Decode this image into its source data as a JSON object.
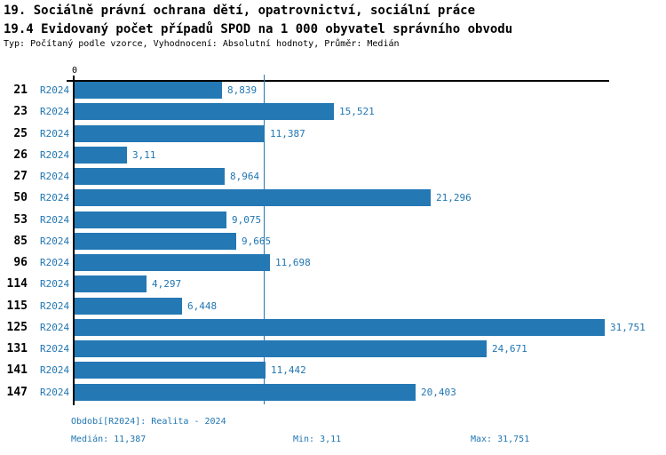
{
  "header": {
    "title_line1": "19. Sociálně právní ochrana dětí, opatrovnictví, sociální práce",
    "title_line2": "19.4 Evidovaný počet případů SPOD na 1 000 obyvatel správního obvodu",
    "subtitle": "Typ: Počítaný podle vzorce, Vyhodnocení: Absolutní hodnoty, Průměr: Medián"
  },
  "chart_data": {
    "type": "bar",
    "orientation": "horizontal",
    "title": "19.4 Evidovaný počet případů SPOD na 1 000 obyvatel správního obvodu",
    "series_label": "R2024",
    "categories": [
      "21",
      "23",
      "25",
      "26",
      "27",
      "50",
      "53",
      "85",
      "96",
      "114",
      "115",
      "125",
      "131",
      "141",
      "147"
    ],
    "values": [
      8.839,
      15.521,
      11.387,
      3.11,
      8.964,
      21.296,
      9.075,
      9.665,
      11.698,
      4.297,
      6.448,
      31.751,
      24.671,
      11.442,
      20.403
    ],
    "value_labels": [
      "8,839",
      "15,521",
      "11,387",
      "3,11",
      "8,964",
      "21,296",
      "9,075",
      "9,665",
      "11,698",
      "4,297",
      "6,448",
      "31,751",
      "24,671",
      "11,442",
      "20,403"
    ],
    "xlabel": "",
    "ylabel": "",
    "xlim": [
      0,
      32
    ],
    "axis_zero_label": "0",
    "median_line_value": 11.387,
    "grid": false,
    "legend_position": "none",
    "bar_color": "#2478B4",
    "accent_text_color": "#2176B2"
  },
  "footer": {
    "period_legend": "Období[R2024]: Realita - 2024",
    "median_label": "Medián: 11,387",
    "min_label": "Min: 3,11",
    "max_label": "Max: 31,751"
  }
}
